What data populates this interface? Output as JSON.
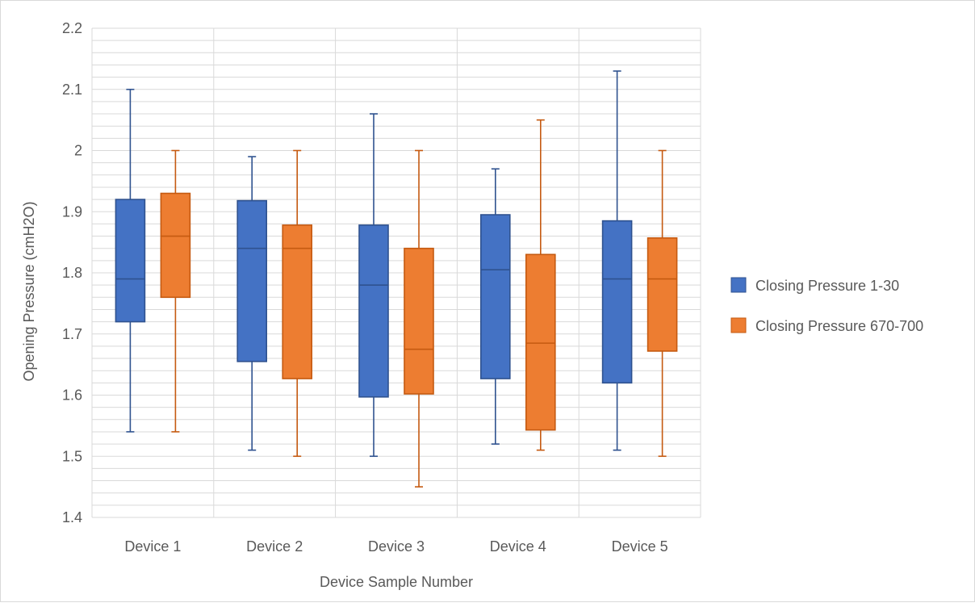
{
  "chart_data": {
    "type": "boxplot",
    "title": "",
    "xlabel": "Device Sample Number",
    "ylabel": "Opening Pressure (cmH2O)",
    "ylim": [
      1.4,
      2.2
    ],
    "y_major_step": 0.1,
    "y_minor_step": 0.02,
    "y_tick_labels": [
      "1.4",
      "1.5",
      "1.6",
      "1.7",
      "1.8",
      "1.9",
      "2",
      "2.1",
      "2.2"
    ],
    "grid": true,
    "legend_position": "right",
    "categories": [
      "Device 1",
      "Device 2",
      "Device 3",
      "Device 4",
      "Device 5"
    ],
    "series": [
      {
        "name": "Closing Pressure 1-30",
        "color": "#4472C4",
        "edge_color": "#2F528F",
        "boxes": [
          {
            "min": 1.54,
            "q1": 1.72,
            "median": 1.79,
            "q3": 1.92,
            "max": 2.1
          },
          {
            "min": 1.51,
            "q1": 1.655,
            "median": 1.84,
            "q3": 1.918,
            "max": 1.99
          },
          {
            "min": 1.5,
            "q1": 1.597,
            "median": 1.78,
            "q3": 1.878,
            "max": 2.06
          },
          {
            "min": 1.52,
            "q1": 1.627,
            "median": 1.805,
            "q3": 1.895,
            "max": 1.97
          },
          {
            "min": 1.51,
            "q1": 1.62,
            "median": 1.79,
            "q3": 1.885,
            "max": 2.13
          }
        ]
      },
      {
        "name": "Closing Pressure 670-700",
        "color": "#ED7D31",
        "edge_color": "#C55A11",
        "boxes": [
          {
            "min": 1.54,
            "q1": 1.76,
            "median": 1.86,
            "q3": 1.93,
            "max": 2.0
          },
          {
            "min": 1.5,
            "q1": 1.627,
            "median": 1.84,
            "q3": 1.878,
            "max": 2.0
          },
          {
            "min": 1.45,
            "q1": 1.602,
            "median": 1.675,
            "q3": 1.84,
            "max": 2.0
          },
          {
            "min": 1.51,
            "q1": 1.543,
            "median": 1.685,
            "q3": 1.83,
            "max": 2.05
          },
          {
            "min": 1.5,
            "q1": 1.672,
            "median": 1.79,
            "q3": 1.857,
            "max": 2.0
          }
        ]
      }
    ]
  }
}
